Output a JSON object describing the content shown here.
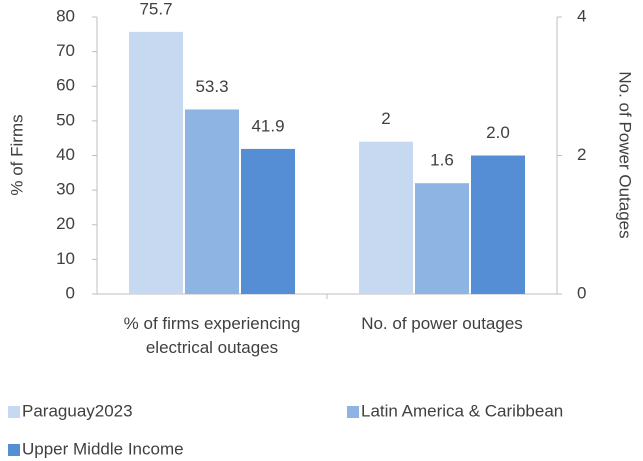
{
  "chart_data": {
    "type": "bar",
    "categories": [
      "% of firms experiencing electrical outages",
      "No. of power outages"
    ],
    "axes": [
      "y",
      "y2"
    ],
    "series": [
      {
        "name": "Paraguay2023",
        "color": "#c6d9f1",
        "values": [
          75.7,
          2.2
        ],
        "value_labels": [
          "75.7",
          "2"
        ]
      },
      {
        "name": "Latin America & Caribbean",
        "color": "#8db4e2",
        "values": [
          53.3,
          1.6
        ],
        "value_labels": [
          "53.3",
          "1.6"
        ]
      },
      {
        "name": "Upper Middle Income",
        "color": "#558ed5",
        "values": [
          41.9,
          2.0
        ],
        "value_labels": [
          "41.9",
          "2.0"
        ]
      }
    ],
    "ylabel": "% of Firms",
    "y2label": "No. of Power Outages",
    "ylim": [
      0,
      80
    ],
    "yticks": [
      0,
      10,
      20,
      30,
      40,
      50,
      60,
      70,
      80
    ],
    "y2lim": [
      0,
      4
    ],
    "y2ticks": [
      0,
      2,
      4
    ],
    "legend": "bottom"
  }
}
